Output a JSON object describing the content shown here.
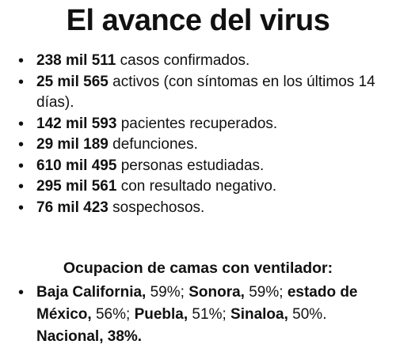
{
  "title": "El avance del virus",
  "stats": [
    {
      "value": "238 mil 511",
      "text": " casos confirmados."
    },
    {
      "value": "25 mil 565",
      "text": " activos (con síntomas en los últimos 14 días)."
    },
    {
      "value": "142 mil 593",
      "text": " pacientes recuperados."
    },
    {
      "value": "29 mil 189",
      "text": " defunciones."
    },
    {
      "value": "610 mil 495",
      "text": " personas estudiadas."
    },
    {
      "value": "295 mil 561",
      "text": " con resultado negativo."
    },
    {
      "value": "76 mil 423",
      "text": " sospechosos."
    }
  ],
  "beds_section": {
    "title": "Ocupacion de camas con ventilador:",
    "entries": [
      {
        "region": "Baja California,",
        "pct": " 59%; "
      },
      {
        "region": "Sonora,",
        "pct": " 59%; "
      },
      {
        "region": "estado de México,",
        "pct": " 56%; "
      },
      {
        "region": "Puebla,",
        "pct": " 51%; "
      },
      {
        "region": "Sinaloa,",
        "pct": " 50%. "
      }
    ],
    "national": "Nacional, 38%."
  }
}
